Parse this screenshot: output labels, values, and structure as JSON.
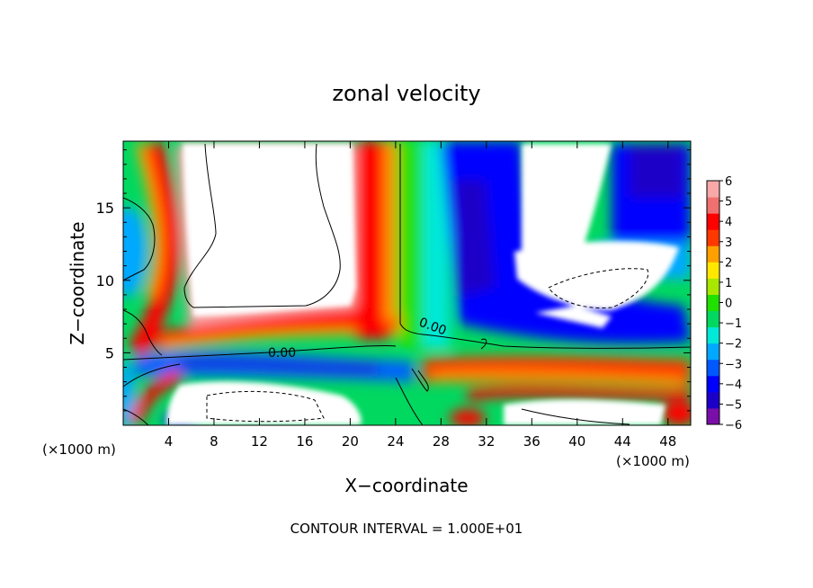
{
  "chart_data": {
    "type": "heatmap",
    "title": "zonal velocity",
    "xlabel": "X−coordinate",
    "ylabel": "Z−coordinate",
    "x_unit_label": "(×1000 m)",
    "y_unit_label": "(×1000 m)",
    "x_ticks": [
      4,
      8,
      12,
      16,
      20,
      24,
      28,
      32,
      36,
      40,
      44,
      48
    ],
    "y_ticks": [
      5,
      10,
      15
    ],
    "xlim": [
      0,
      50
    ],
    "ylim": [
      0,
      19.6
    ],
    "contour_labels": [
      "0.00",
      "0.00",
      "0.00"
    ],
    "footer": "CONTOUR INTERVAL = 1.000E+01",
    "colorbar": {
      "ticks": [
        "6",
        "5",
        "4",
        "3",
        "2",
        "1",
        "0",
        "−1",
        "−2",
        "−3",
        "−4",
        "−5",
        "−6"
      ],
      "range": [
        -6,
        6
      ],
      "colors": [
        "#7a0ea8",
        "#1c00c8",
        "#0000ff",
        "#0058ff",
        "#00a8ff",
        "#00e8d8",
        "#00d860",
        "#20e000",
        "#a8e800",
        "#ffe800",
        "#ffa000",
        "#ff3800",
        "#ff0000",
        "#f07070",
        "#f8a8a8"
      ]
    }
  }
}
